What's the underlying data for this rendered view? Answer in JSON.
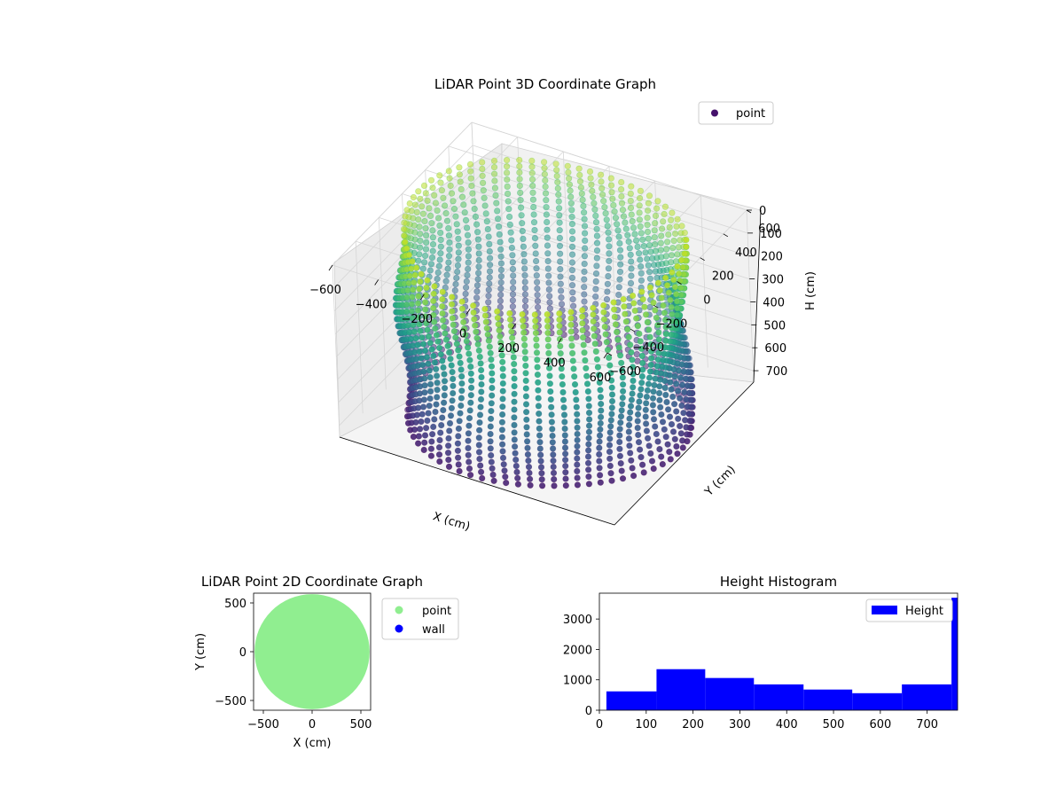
{
  "chart_data": [
    {
      "type": "scatter",
      "projection": "3d",
      "title": "LiDAR Point 3D Coordinate Graph",
      "xlabel": "X (cm)",
      "ylabel": "Y (cm)",
      "zlabel": "H (cm)",
      "xlim": [
        -600,
        600
      ],
      "ylim": [
        -600,
        600
      ],
      "zlim": [
        0,
        750
      ],
      "z_inverted": true,
      "xticks": [
        -600,
        -400,
        -200,
        0,
        200,
        400,
        600
      ],
      "yticks": [
        -600,
        -400,
        -200,
        0,
        200,
        400,
        600
      ],
      "zticks": [
        0,
        100,
        200,
        300,
        400,
        500,
        600,
        700
      ],
      "grid": true,
      "colormap": "viridis",
      "legend": {
        "position": "top-right",
        "entries": [
          "point"
        ]
      },
      "series": [
        {
          "name": "point",
          "shape": "cylinder",
          "center": [
            0,
            0
          ],
          "radius": 550,
          "height_range": [
            0,
            760
          ],
          "marker_color": "#45116b"
        }
      ]
    },
    {
      "type": "scatter",
      "title": "LiDAR Point 2D Coordinate Graph",
      "xlabel": "X (cm)",
      "ylabel": "Y (cm)",
      "xlim": [
        -600,
        600
      ],
      "ylim": [
        -600,
        600
      ],
      "xticks": [
        -500,
        0,
        500
      ],
      "yticks": [
        -500,
        0,
        500
      ],
      "grid": false,
      "legend": {
        "position": "outside-right",
        "entries": [
          "point",
          "wall"
        ]
      },
      "series": [
        {
          "name": "point",
          "color": "#90ee90",
          "shape": "disk",
          "center": [
            0,
            0
          ],
          "radius": 590
        },
        {
          "name": "wall",
          "color": "#0000ff"
        }
      ]
    },
    {
      "type": "bar",
      "subtype": "histogram",
      "title": "Height Histogram",
      "xlabel": "",
      "ylabel": "",
      "xlim": [
        0,
        765
      ],
      "ylim": [
        0,
        3850
      ],
      "xticks": [
        0,
        100,
        200,
        300,
        400,
        500,
        600,
        700
      ],
      "yticks": [
        0,
        1000,
        2000,
        3000
      ],
      "color": "#0000ff",
      "legend": {
        "position": "top-right",
        "entries": [
          "Height"
        ]
      },
      "bins": [
        {
          "x0": 15,
          "x1": 122,
          "value": 620
        },
        {
          "x0": 122,
          "x1": 226,
          "value": 1350
        },
        {
          "x0": 226,
          "x1": 330,
          "value": 1060
        },
        {
          "x0": 330,
          "x1": 436,
          "value": 850
        },
        {
          "x0": 436,
          "x1": 540,
          "value": 680
        },
        {
          "x0": 540,
          "x1": 646,
          "value": 560
        },
        {
          "x0": 646,
          "x1": 752,
          "value": 850
        },
        {
          "x0": 752,
          "x1": 765,
          "value": 3700
        }
      ],
      "series": [
        {
          "name": "Height"
        }
      ]
    }
  ]
}
